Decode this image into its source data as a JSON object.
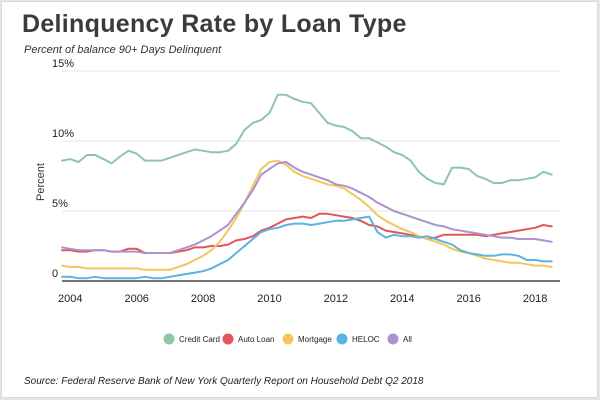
{
  "header": {
    "title": "Delinquency Rate by Loan Type",
    "subtitle": "Percent of balance 90+ Days Delinquent"
  },
  "footer": {
    "source": "Source: Federal Reserve Bank of New York Quarterly Report on Household Debt Q2 2018"
  },
  "chart_data": {
    "type": "line",
    "title": "Delinquency Rate by Loan Type",
    "subtitle": "Percent of balance 90+ Days Delinquent",
    "xlabel": "",
    "ylabel": "Percent",
    "xlim": [
      2003.75,
      2018.75
    ],
    "ylim": [
      0,
      15
    ],
    "x_ticks": [
      2004,
      2006,
      2008,
      2010,
      2012,
      2014,
      2016,
      2018
    ],
    "y_ticks": [
      0,
      5,
      10,
      15
    ],
    "y_tick_labels": [
      "0",
      "5%",
      "10%",
      "15%"
    ],
    "grid": "horizontal",
    "legend_position": "bottom",
    "series": [
      {
        "name": "Credit Card",
        "color": "#8ec6a6",
        "x": [
          2003.75,
          2004.0,
          2004.25,
          2004.5,
          2004.75,
          2005.0,
          2005.25,
          2005.5,
          2005.75,
          2006.0,
          2006.25,
          2006.5,
          2006.75,
          2007.0,
          2007.25,
          2007.5,
          2007.75,
          2008.0,
          2008.25,
          2008.5,
          2008.75,
          2009.0,
          2009.25,
          2009.5,
          2009.75,
          2010.0,
          2010.25,
          2010.5,
          2010.75,
          2011.0,
          2011.25,
          2011.5,
          2011.75,
          2012.0,
          2012.25,
          2012.5,
          2012.75,
          2013.0,
          2013.25,
          2013.5,
          2013.75,
          2014.0,
          2014.25,
          2014.5,
          2014.75,
          2015.0,
          2015.25,
          2015.5,
          2015.75,
          2016.0,
          2016.25,
          2016.5,
          2016.75,
          2017.0,
          2017.25,
          2017.5,
          2017.75,
          2018.0,
          2018.25,
          2018.5
        ],
        "y": [
          8.6,
          8.7,
          8.5,
          9.0,
          9.0,
          8.7,
          8.4,
          8.9,
          9.3,
          9.1,
          8.6,
          8.6,
          8.6,
          8.8,
          9.0,
          9.2,
          9.4,
          9.3,
          9.2,
          9.2,
          9.3,
          9.8,
          10.8,
          11.3,
          11.5,
          12.0,
          13.3,
          13.3,
          13.0,
          12.8,
          12.7,
          12.0,
          11.3,
          11.1,
          11.0,
          10.7,
          10.2,
          10.2,
          9.9,
          9.6,
          9.2,
          9.0,
          8.6,
          7.8,
          7.3,
          7.0,
          6.9,
          8.1,
          8.1,
          8.0,
          7.5,
          7.3,
          7.0,
          7.0,
          7.2,
          7.2,
          7.3,
          7.4,
          7.8,
          7.6
        ]
      },
      {
        "name": "Auto Loan",
        "color": "#e15759",
        "x": [
          2003.75,
          2004.0,
          2004.25,
          2004.5,
          2004.75,
          2005.0,
          2005.25,
          2005.5,
          2005.75,
          2006.0,
          2006.25,
          2006.5,
          2006.75,
          2007.0,
          2007.25,
          2007.5,
          2007.75,
          2008.0,
          2008.25,
          2008.5,
          2008.75,
          2009.0,
          2009.25,
          2009.5,
          2009.75,
          2010.0,
          2010.25,
          2010.5,
          2010.75,
          2011.0,
          2011.25,
          2011.5,
          2011.75,
          2012.0,
          2012.25,
          2012.5,
          2012.75,
          2013.0,
          2013.25,
          2013.5,
          2013.75,
          2014.0,
          2014.25,
          2014.5,
          2014.75,
          2015.0,
          2015.25,
          2015.5,
          2015.75,
          2016.0,
          2016.25,
          2016.5,
          2016.75,
          2017.0,
          2017.25,
          2017.5,
          2017.75,
          2018.0,
          2018.25,
          2018.5
        ],
        "y": [
          2.2,
          2.2,
          2.1,
          2.1,
          2.2,
          2.2,
          2.1,
          2.1,
          2.3,
          2.3,
          2.0,
          2.0,
          2.0,
          2.0,
          2.1,
          2.2,
          2.4,
          2.4,
          2.5,
          2.5,
          2.6,
          2.9,
          3.0,
          3.2,
          3.6,
          3.8,
          4.1,
          4.4,
          4.5,
          4.6,
          4.5,
          4.8,
          4.8,
          4.7,
          4.6,
          4.5,
          4.3,
          4.0,
          3.9,
          3.6,
          3.5,
          3.4,
          3.3,
          3.2,
          3.0,
          3.1,
          3.3,
          3.3,
          3.3,
          3.3,
          3.3,
          3.2,
          3.3,
          3.4,
          3.5,
          3.6,
          3.7,
          3.8,
          4.0,
          3.9
        ]
      },
      {
        "name": "Mortgage",
        "color": "#f2c75c",
        "x": [
          2003.75,
          2004.0,
          2004.25,
          2004.5,
          2004.75,
          2005.0,
          2005.25,
          2005.5,
          2005.75,
          2006.0,
          2006.25,
          2006.5,
          2006.75,
          2007.0,
          2007.25,
          2007.5,
          2007.75,
          2008.0,
          2008.25,
          2008.5,
          2008.75,
          2009.0,
          2009.25,
          2009.5,
          2009.75,
          2010.0,
          2010.25,
          2010.5,
          2010.75,
          2011.0,
          2011.25,
          2011.5,
          2011.75,
          2012.0,
          2012.25,
          2012.5,
          2012.75,
          2013.0,
          2013.25,
          2013.5,
          2013.75,
          2014.0,
          2014.25,
          2014.5,
          2014.75,
          2015.0,
          2015.25,
          2015.5,
          2015.75,
          2016.0,
          2016.25,
          2016.5,
          2016.75,
          2017.0,
          2017.25,
          2017.5,
          2017.75,
          2018.0,
          2018.25,
          2018.5
        ],
        "y": [
          1.1,
          1.0,
          1.0,
          0.9,
          0.9,
          0.9,
          0.9,
          0.9,
          0.9,
          0.9,
          0.8,
          0.8,
          0.8,
          0.8,
          1.0,
          1.2,
          1.5,
          1.8,
          2.2,
          2.8,
          3.6,
          4.5,
          5.6,
          6.8,
          8.0,
          8.5,
          8.6,
          8.3,
          7.8,
          7.5,
          7.3,
          7.1,
          6.9,
          6.8,
          6.6,
          6.2,
          5.8,
          5.3,
          4.7,
          4.3,
          4.0,
          3.7,
          3.5,
          3.2,
          3.0,
          2.8,
          2.6,
          2.3,
          2.1,
          2.0,
          1.8,
          1.6,
          1.5,
          1.4,
          1.3,
          1.3,
          1.2,
          1.1,
          1.1,
          1.0
        ]
      },
      {
        "name": "HELOC",
        "color": "#5ab4e1",
        "x": [
          2003.75,
          2004.0,
          2004.25,
          2004.5,
          2004.75,
          2005.0,
          2005.25,
          2005.5,
          2005.75,
          2006.0,
          2006.25,
          2006.5,
          2006.75,
          2007.0,
          2007.25,
          2007.5,
          2007.75,
          2008.0,
          2008.25,
          2008.5,
          2008.75,
          2009.0,
          2009.25,
          2009.5,
          2009.75,
          2010.0,
          2010.25,
          2010.5,
          2010.75,
          2011.0,
          2011.25,
          2011.5,
          2011.75,
          2012.0,
          2012.25,
          2012.5,
          2012.75,
          2013.0,
          2013.25,
          2013.5,
          2013.75,
          2014.0,
          2014.25,
          2014.5,
          2014.75,
          2015.0,
          2015.25,
          2015.5,
          2015.75,
          2016.0,
          2016.25,
          2016.5,
          2016.75,
          2017.0,
          2017.25,
          2017.5,
          2017.75,
          2018.0,
          2018.25,
          2018.5
        ],
        "y": [
          0.3,
          0.3,
          0.2,
          0.2,
          0.3,
          0.2,
          0.2,
          0.2,
          0.2,
          0.2,
          0.3,
          0.2,
          0.2,
          0.3,
          0.4,
          0.5,
          0.6,
          0.7,
          0.9,
          1.2,
          1.5,
          2.0,
          2.5,
          3.0,
          3.5,
          3.7,
          3.8,
          4.0,
          4.1,
          4.1,
          4.0,
          4.1,
          4.2,
          4.3,
          4.3,
          4.4,
          4.5,
          4.6,
          3.5,
          3.1,
          3.3,
          3.2,
          3.2,
          3.1,
          3.2,
          3.0,
          2.8,
          2.6,
          2.2,
          2.0,
          1.9,
          1.8,
          1.8,
          1.9,
          1.9,
          1.8,
          1.5,
          1.5,
          1.4,
          1.4
        ]
      },
      {
        "name": "All",
        "color": "#ac92d0",
        "x": [
          2003.75,
          2004.0,
          2004.25,
          2004.5,
          2004.75,
          2005.0,
          2005.25,
          2005.5,
          2005.75,
          2006.0,
          2006.25,
          2006.5,
          2006.75,
          2007.0,
          2007.25,
          2007.5,
          2007.75,
          2008.0,
          2008.25,
          2008.5,
          2008.75,
          2009.0,
          2009.25,
          2009.5,
          2009.75,
          2010.0,
          2010.25,
          2010.5,
          2010.75,
          2011.0,
          2011.25,
          2011.5,
          2011.75,
          2012.0,
          2012.25,
          2012.5,
          2012.75,
          2013.0,
          2013.25,
          2013.5,
          2013.75,
          2014.0,
          2014.25,
          2014.5,
          2014.75,
          2015.0,
          2015.25,
          2015.5,
          2015.75,
          2016.0,
          2016.25,
          2016.5,
          2016.75,
          2017.0,
          2017.25,
          2017.5,
          2017.75,
          2018.0,
          2018.25,
          2018.5
        ],
        "y": [
          2.4,
          2.3,
          2.2,
          2.2,
          2.2,
          2.2,
          2.1,
          2.1,
          2.1,
          2.1,
          2.0,
          2.0,
          2.0,
          2.0,
          2.2,
          2.4,
          2.6,
          2.9,
          3.2,
          3.6,
          4.0,
          4.8,
          5.6,
          6.5,
          7.6,
          8.0,
          8.4,
          8.5,
          8.1,
          7.8,
          7.6,
          7.4,
          7.2,
          6.9,
          6.8,
          6.6,
          6.3,
          6.0,
          5.6,
          5.3,
          5.0,
          4.8,
          4.6,
          4.4,
          4.2,
          4.0,
          3.9,
          3.7,
          3.6,
          3.5,
          3.4,
          3.3,
          3.2,
          3.1,
          3.1,
          3.0,
          3.0,
          3.0,
          2.9,
          2.8
        ]
      }
    ]
  }
}
